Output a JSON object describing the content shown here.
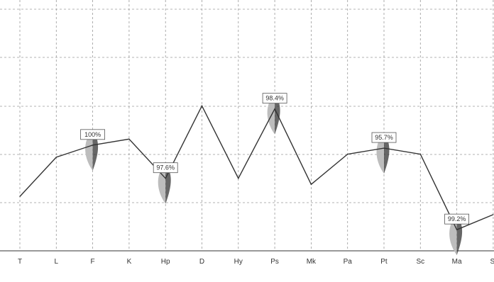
{
  "chart_data": {
    "type": "line",
    "categories": [
      "T",
      "L",
      "F",
      "K",
      "Hp",
      "D",
      "Hy",
      "Ps",
      "Mk",
      "Pa",
      "Pt",
      "Sc",
      "Ma",
      "Si"
    ],
    "series": [
      {
        "values": [
          48,
          61,
          65,
          67,
          54,
          78,
          54,
          77,
          52,
          62,
          64,
          62,
          37,
          42
        ]
      }
    ],
    "annotations": [
      {
        "category": "F",
        "label": "100%"
      },
      {
        "category": "Hp",
        "label": "97.6%"
      },
      {
        "category": "Ps",
        "label": "98.4%"
      },
      {
        "category": "Pt",
        "label": "95.7%"
      },
      {
        "category": "Ma",
        "label": "99.2%"
      }
    ],
    "title": "",
    "xlabel": "",
    "ylabel": "",
    "ylim": [
      30,
      110
    ],
    "grid": true,
    "colors": {
      "line": "#333333",
      "grid": "#9a9a9a",
      "marker_light": "#bdbdbd",
      "marker_dark": "#333333"
    }
  }
}
